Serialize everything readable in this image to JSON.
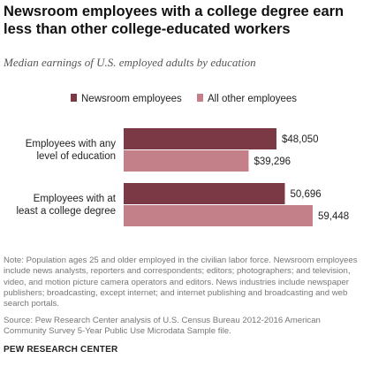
{
  "header": {
    "title": "Newsroom employees with a college degree earn less than other college-educated workers",
    "subtitle": "Median earnings of U.S. employed adults by education"
  },
  "colors": {
    "newsroom": "#7b3845",
    "other": "#c48089"
  },
  "chart_data": {
    "type": "bar",
    "orientation": "horizontal",
    "categories": [
      [
        "Employees with any",
        "level of education"
      ],
      [
        "Employees with at",
        "least a college degree"
      ]
    ],
    "series": [
      {
        "name": "Newsroom employees",
        "values": [
          48050,
          50696
        ],
        "labels": [
          "$48,050",
          "50,696"
        ]
      },
      {
        "name": "All other employees",
        "values": [
          39296,
          59448
        ],
        "labels": [
          "$39,296",
          "59,448"
        ]
      }
    ],
    "legend_position": "top",
    "grid": false,
    "xlim": [
      0,
      59448
    ]
  },
  "footer": {
    "note": "Note: Population ages 25 and older employed in the civilian labor force. Newsroom employees include news analysts, reporters and correspondents; editors; photographers; and television, video, and motion picture camera operators and editors. News industries include newspaper publishers; broadcasting, except internet; and internet publishing and broadcasting and web search portals.",
    "source": "Source: Pew Research Center analysis of U.S. Census Bureau 2012-2016 American Community Survey 5-Year Public Use Microdata Sample file.",
    "brand": "PEW RESEARCH CENTER"
  }
}
